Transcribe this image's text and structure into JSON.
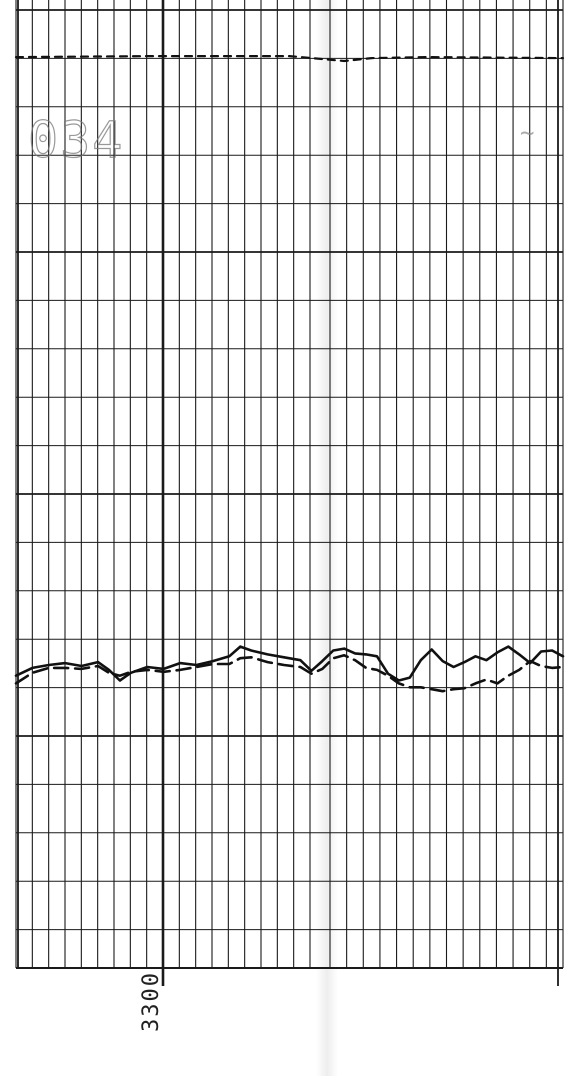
{
  "header": {
    "code_text": "034",
    "mark_text": "~"
  },
  "depth": {
    "label": "3300"
  },
  "colors": {
    "grid": "#1a1a1a",
    "trace": "#111111",
    "background": "#ffffff"
  },
  "chart_data": {
    "type": "line",
    "title": "",
    "xlabel": "",
    "ylabel": "",
    "grid": true,
    "legend": "none",
    "depth_axis": {
      "label": "3300",
      "direction": "vertical"
    },
    "track_scale": {
      "min": 0,
      "max": 100
    },
    "depth_range": {
      "top": 0,
      "bottom": 100
    },
    "series": [
      {
        "style": "solid",
        "points": [
          [
            0,
            69.8
          ],
          [
            3,
            69.0
          ],
          [
            6,
            68.7
          ],
          [
            9,
            68.5
          ],
          [
            12,
            68.8
          ],
          [
            15,
            68.4
          ],
          [
            17,
            69.2
          ],
          [
            19,
            70.3
          ],
          [
            21,
            69.5
          ],
          [
            24,
            68.9
          ],
          [
            27,
            69.1
          ],
          [
            30,
            68.5
          ],
          [
            33,
            68.7
          ],
          [
            36,
            68.3
          ],
          [
            39,
            67.8
          ],
          [
            41,
            66.8
          ],
          [
            43,
            67.2
          ],
          [
            46,
            67.6
          ],
          [
            49,
            67.9
          ],
          [
            52,
            68.2
          ],
          [
            54,
            69.3
          ],
          [
            56,
            68.3
          ],
          [
            58,
            67.2
          ],
          [
            60,
            67.0
          ],
          [
            62,
            67.5
          ],
          [
            64,
            67.6
          ],
          [
            66,
            67.8
          ],
          [
            68,
            69.6
          ],
          [
            70,
            70.3
          ],
          [
            72,
            70.0
          ],
          [
            74,
            68.2
          ],
          [
            76,
            67.1
          ],
          [
            78,
            68.3
          ],
          [
            80,
            68.9
          ],
          [
            82,
            68.4
          ],
          [
            84,
            67.8
          ],
          [
            86,
            68.2
          ],
          [
            88,
            67.4
          ],
          [
            90,
            66.8
          ],
          [
            92,
            67.6
          ],
          [
            94,
            68.5
          ],
          [
            96,
            67.3
          ],
          [
            98,
            67.2
          ],
          [
            100,
            67.8
          ]
        ]
      },
      {
        "style": "dashed",
        "points": [
          [
            0,
            70.6
          ],
          [
            3,
            69.5
          ],
          [
            6,
            69.0
          ],
          [
            9,
            69.0
          ],
          [
            12,
            69.1
          ],
          [
            15,
            68.8
          ],
          [
            17,
            69.5
          ],
          [
            19,
            69.8
          ],
          [
            21,
            69.4
          ],
          [
            24,
            69.2
          ],
          [
            27,
            69.4
          ],
          [
            30,
            69.2
          ],
          [
            33,
            68.9
          ],
          [
            36,
            68.6
          ],
          [
            39,
            68.6
          ],
          [
            41,
            68.0
          ],
          [
            43,
            67.9
          ],
          [
            46,
            68.4
          ],
          [
            49,
            68.7
          ],
          [
            52,
            68.9
          ],
          [
            54,
            69.6
          ],
          [
            56,
            69.1
          ],
          [
            58,
            68.0
          ],
          [
            60,
            67.7
          ],
          [
            62,
            68.2
          ],
          [
            64,
            69.0
          ],
          [
            66,
            69.2
          ],
          [
            68,
            69.8
          ],
          [
            70,
            70.6
          ],
          [
            72,
            71.0
          ],
          [
            74,
            71.0
          ],
          [
            76,
            71.2
          ],
          [
            78,
            71.4
          ],
          [
            80,
            71.2
          ],
          [
            82,
            71.1
          ],
          [
            84,
            70.6
          ],
          [
            86,
            70.2
          ],
          [
            88,
            70.6
          ],
          [
            90,
            69.8
          ],
          [
            92,
            69.2
          ],
          [
            94,
            68.3
          ],
          [
            96,
            68.8
          ],
          [
            98,
            69.0
          ],
          [
            100,
            68.9
          ]
        ]
      },
      {
        "style": "dashed",
        "points": [
          [
            0,
            5.9
          ],
          [
            25,
            5.8
          ],
          [
            50,
            5.8
          ],
          [
            60,
            6.3
          ],
          [
            65,
            6.0
          ],
          [
            75,
            5.9
          ],
          [
            100,
            6.0
          ]
        ]
      }
    ]
  }
}
